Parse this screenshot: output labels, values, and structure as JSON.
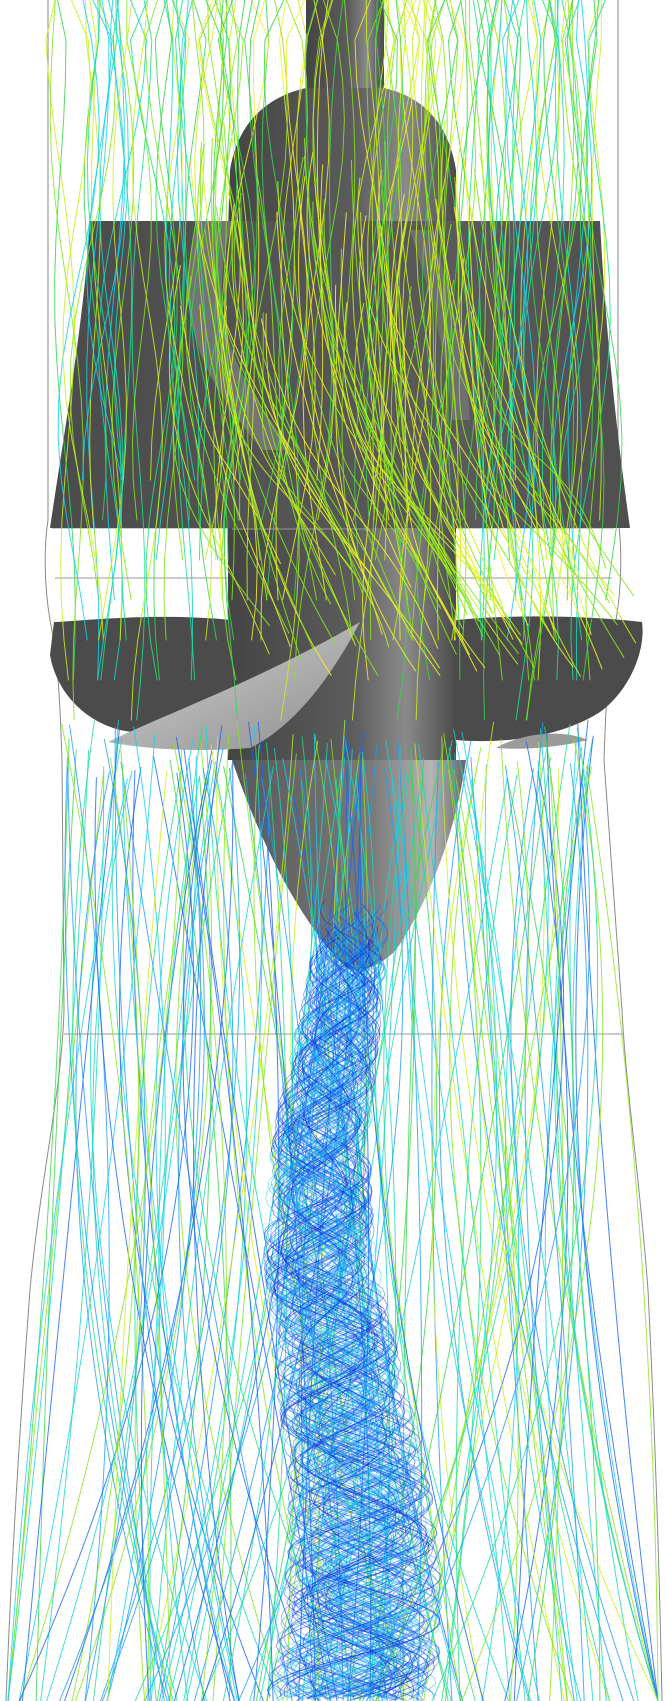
{
  "scene": {
    "colors": {
      "background": "#ffffff",
      "domain_outline": "#8a8a8a",
      "interface_line": "#9a9a9a",
      "hub_dark": "#4a4a4a",
      "hub_mid": "#5a5a5a",
      "blade_light": "#c9c9c9",
      "blade_mid": "#9b9b9b"
    },
    "streamline_palette": [
      "#0a1fd8",
      "#1a64f0",
      "#1e9df6",
      "#18d0ee",
      "#17d9c2",
      "#1ee08c",
      "#3ad64c",
      "#86e51f",
      "#c9ef1c",
      "#f2ef2a"
    ]
  }
}
